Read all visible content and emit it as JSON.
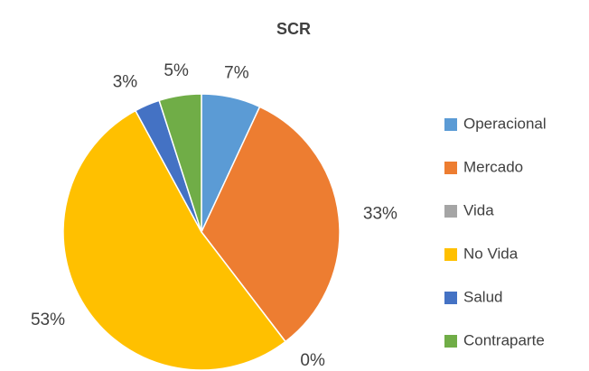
{
  "chart_data": {
    "type": "pie",
    "title": "SCR",
    "categories": [
      "Operacional",
      "Mercado",
      "Vida",
      "No Vida",
      "Salud",
      "Contraparte"
    ],
    "values": [
      7,
      33,
      0,
      53,
      3,
      5
    ],
    "value_labels": [
      "7%",
      "33%",
      "0%",
      "53%",
      "3%",
      "5%"
    ],
    "colors": [
      "#5b9bd5",
      "#ed7d31",
      "#a5a5a5",
      "#ffc000",
      "#4472c4",
      "#70ad47"
    ],
    "legend": "right"
  }
}
